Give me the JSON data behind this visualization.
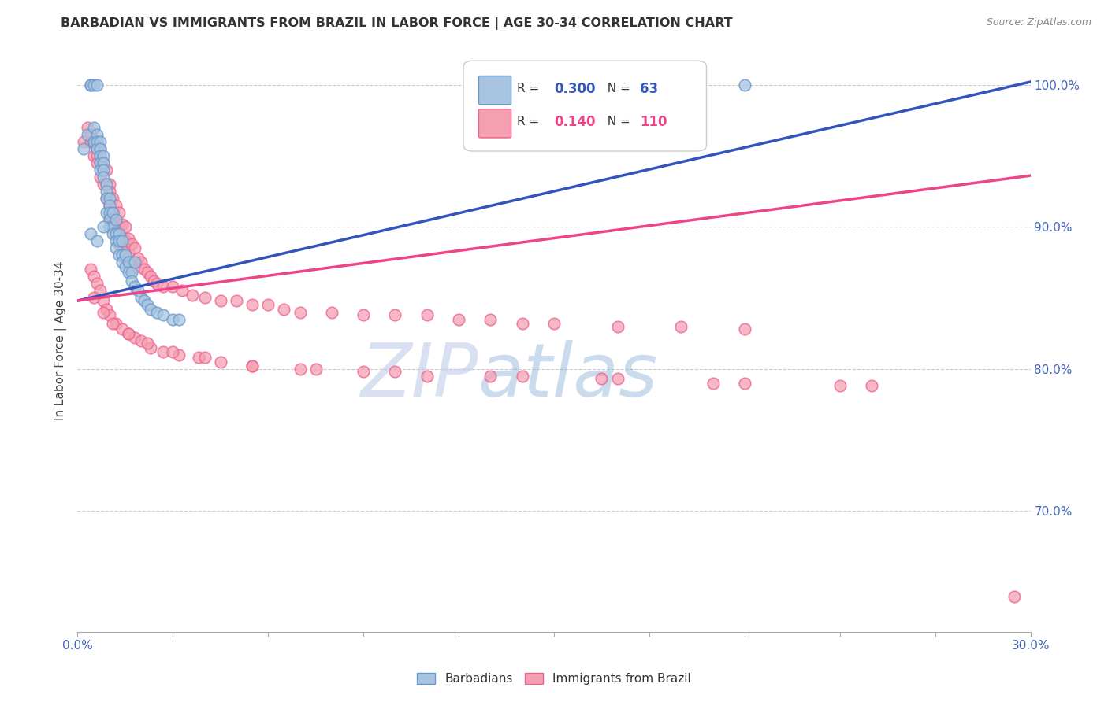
{
  "title": "BARBADIAN VS IMMIGRANTS FROM BRAZIL IN LABOR FORCE | AGE 30-34 CORRELATION CHART",
  "source": "Source: ZipAtlas.com",
  "ylabel": "In Labor Force | Age 30-34",
  "xlim": [
    0.0,
    0.3
  ],
  "ylim": [
    0.615,
    1.025
  ],
  "ytick_labels_right": [
    "100.0%",
    "90.0%",
    "80.0%",
    "70.0%"
  ],
  "ytick_positions_right": [
    1.0,
    0.9,
    0.8,
    0.7
  ],
  "blue_R": "0.300",
  "blue_N": "63",
  "pink_R": "0.140",
  "pink_N": "110",
  "blue_color": "#a8c4e0",
  "pink_color": "#f4a0b0",
  "blue_edge_color": "#6699cc",
  "pink_edge_color": "#f06090",
  "blue_line_color": "#3355bb",
  "pink_line_color": "#ee4488",
  "watermark_zip": "ZIP",
  "watermark_atlas": "atlas",
  "legend_label_blue": "Barbadians",
  "legend_label_pink": "Immigrants from Brazil",
  "blue_line_x": [
    0.0,
    0.3
  ],
  "blue_line_y": [
    0.848,
    1.002
  ],
  "pink_line_x": [
    0.0,
    0.3
  ],
  "pink_line_y": [
    0.848,
    0.936
  ],
  "blue_scatter_x": [
    0.002,
    0.003,
    0.004,
    0.004,
    0.005,
    0.005,
    0.005,
    0.006,
    0.006,
    0.006,
    0.006,
    0.007,
    0.007,
    0.007,
    0.007,
    0.007,
    0.008,
    0.008,
    0.008,
    0.008,
    0.009,
    0.009,
    0.009,
    0.009,
    0.01,
    0.01,
    0.01,
    0.01,
    0.01,
    0.011,
    0.011,
    0.011,
    0.012,
    0.012,
    0.012,
    0.012,
    0.013,
    0.013,
    0.013,
    0.014,
    0.014,
    0.014,
    0.015,
    0.015,
    0.016,
    0.016,
    0.017,
    0.017,
    0.018,
    0.019,
    0.02,
    0.021,
    0.022,
    0.023,
    0.025,
    0.027,
    0.03,
    0.032,
    0.004,
    0.006,
    0.008,
    0.018,
    0.21
  ],
  "blue_scatter_y": [
    0.955,
    0.965,
    1.0,
    1.0,
    1.0,
    0.97,
    0.96,
    1.0,
    0.965,
    0.96,
    0.955,
    0.96,
    0.955,
    0.95,
    0.945,
    0.94,
    0.95,
    0.945,
    0.94,
    0.935,
    0.93,
    0.925,
    0.92,
    0.91,
    0.92,
    0.915,
    0.91,
    0.905,
    0.9,
    0.91,
    0.9,
    0.895,
    0.905,
    0.895,
    0.89,
    0.885,
    0.895,
    0.89,
    0.88,
    0.89,
    0.88,
    0.875,
    0.88,
    0.872,
    0.875,
    0.868,
    0.868,
    0.862,
    0.858,
    0.855,
    0.85,
    0.848,
    0.845,
    0.842,
    0.84,
    0.838,
    0.835,
    0.835,
    0.895,
    0.89,
    0.9,
    0.875,
    1.0
  ],
  "pink_scatter_x": [
    0.002,
    0.003,
    0.004,
    0.004,
    0.005,
    0.005,
    0.006,
    0.006,
    0.006,
    0.007,
    0.007,
    0.007,
    0.008,
    0.008,
    0.008,
    0.009,
    0.009,
    0.009,
    0.01,
    0.01,
    0.01,
    0.01,
    0.011,
    0.011,
    0.012,
    0.012,
    0.012,
    0.013,
    0.013,
    0.013,
    0.014,
    0.014,
    0.015,
    0.015,
    0.015,
    0.016,
    0.016,
    0.017,
    0.017,
    0.018,
    0.018,
    0.019,
    0.02,
    0.021,
    0.022,
    0.023,
    0.024,
    0.025,
    0.027,
    0.03,
    0.033,
    0.036,
    0.04,
    0.045,
    0.05,
    0.055,
    0.06,
    0.065,
    0.07,
    0.08,
    0.09,
    0.1,
    0.11,
    0.12,
    0.13,
    0.14,
    0.15,
    0.17,
    0.19,
    0.21,
    0.004,
    0.005,
    0.006,
    0.007,
    0.008,
    0.009,
    0.01,
    0.012,
    0.014,
    0.016,
    0.018,
    0.02,
    0.023,
    0.027,
    0.032,
    0.038,
    0.045,
    0.055,
    0.07,
    0.09,
    0.11,
    0.14,
    0.17,
    0.21,
    0.25,
    0.005,
    0.008,
    0.011,
    0.016,
    0.022,
    0.03,
    0.04,
    0.055,
    0.075,
    0.1,
    0.13,
    0.165,
    0.2,
    0.24,
    0.295
  ],
  "pink_scatter_y": [
    0.96,
    0.97,
    0.965,
    0.96,
    0.96,
    0.95,
    0.955,
    0.95,
    0.945,
    0.955,
    0.945,
    0.935,
    0.945,
    0.94,
    0.93,
    0.94,
    0.93,
    0.92,
    0.93,
    0.925,
    0.915,
    0.905,
    0.92,
    0.91,
    0.915,
    0.905,
    0.895,
    0.91,
    0.9,
    0.888,
    0.902,
    0.892,
    0.9,
    0.89,
    0.878,
    0.892,
    0.882,
    0.888,
    0.875,
    0.885,
    0.872,
    0.878,
    0.875,
    0.87,
    0.868,
    0.865,
    0.862,
    0.86,
    0.858,
    0.858,
    0.855,
    0.852,
    0.85,
    0.848,
    0.848,
    0.845,
    0.845,
    0.842,
    0.84,
    0.84,
    0.838,
    0.838,
    0.838,
    0.835,
    0.835,
    0.832,
    0.832,
    0.83,
    0.83,
    0.828,
    0.87,
    0.865,
    0.86,
    0.855,
    0.848,
    0.842,
    0.838,
    0.832,
    0.828,
    0.825,
    0.822,
    0.82,
    0.815,
    0.812,
    0.81,
    0.808,
    0.805,
    0.802,
    0.8,
    0.798,
    0.795,
    0.795,
    0.793,
    0.79,
    0.788,
    0.85,
    0.84,
    0.832,
    0.825,
    0.818,
    0.812,
    0.808,
    0.802,
    0.8,
    0.798,
    0.795,
    0.793,
    0.79,
    0.788,
    0.64
  ]
}
